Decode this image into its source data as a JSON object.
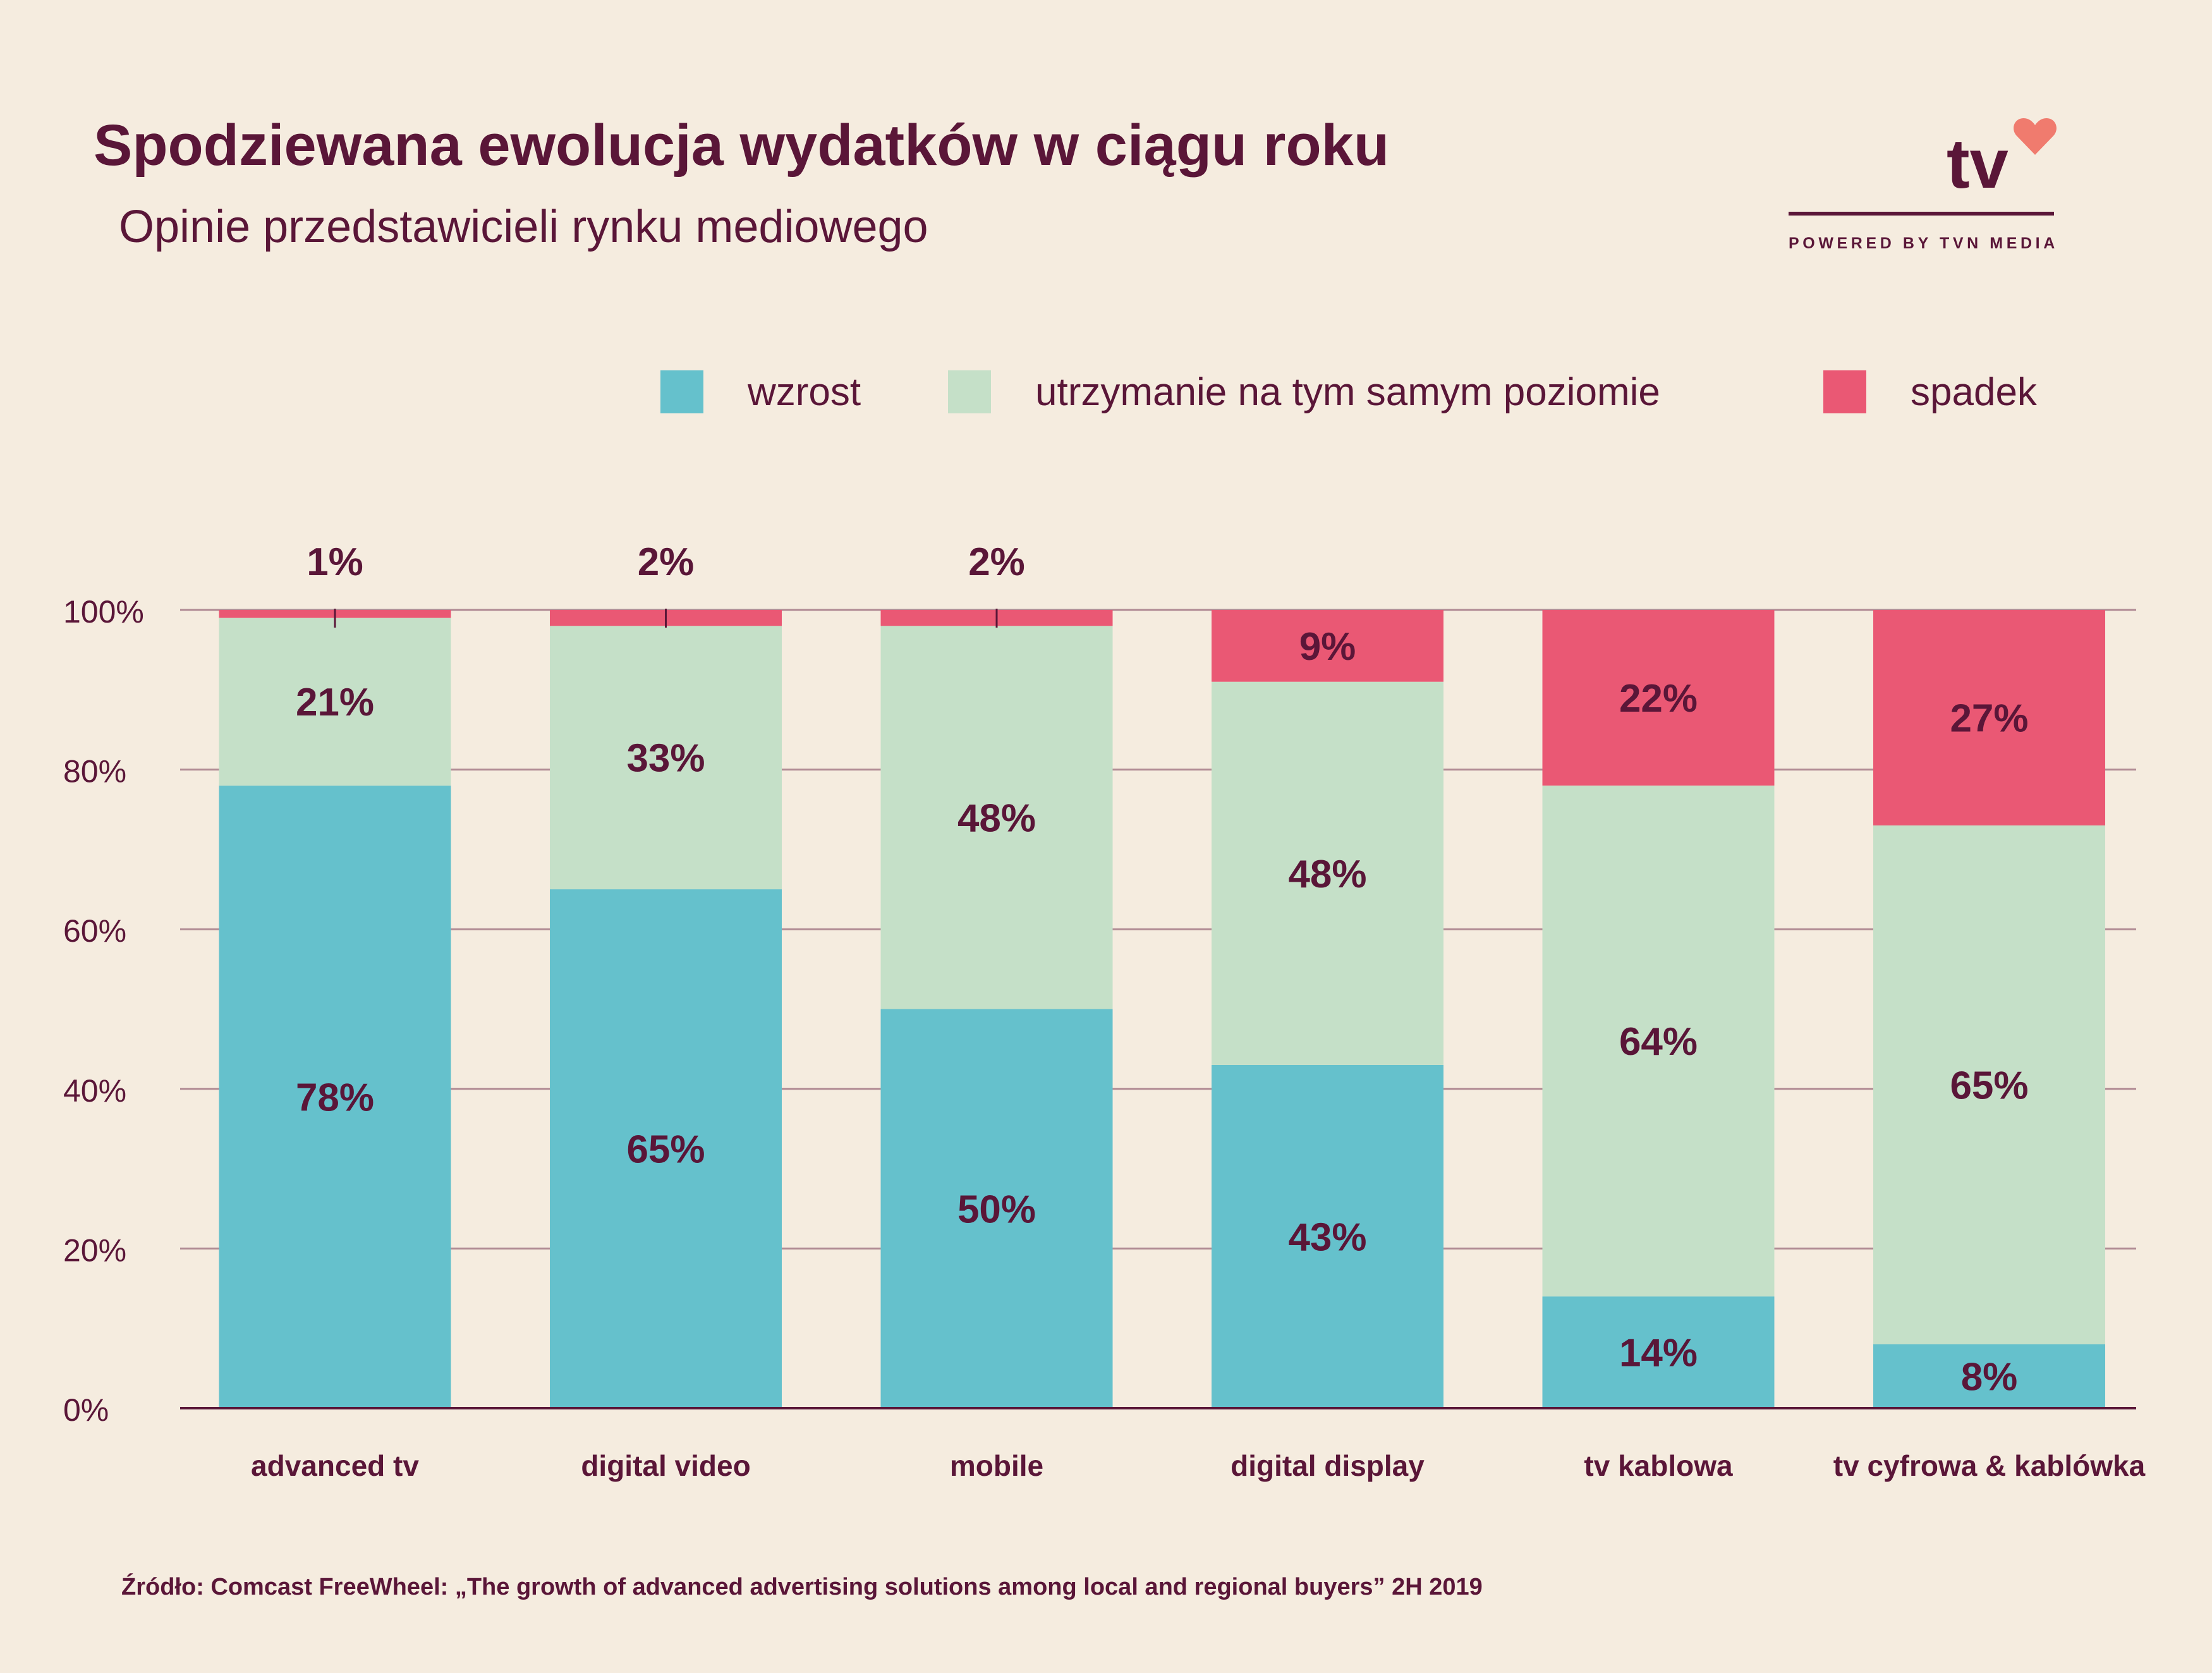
{
  "title": "Spodziewana ewolucja wydatków w ciągu roku",
  "subtitle": "Opinie przedstawicieli rynku mediowego",
  "logo": {
    "text": "tv",
    "tagline": "POWERED BY TVN MEDIA",
    "heart_color": "#f07b6e"
  },
  "legend": [
    {
      "label": "wzrost",
      "color": "#65c1cc"
    },
    {
      "label": "utrzymanie na tym samym poziomie",
      "color": "#c5e0c8"
    },
    {
      "label": "spadek",
      "color": "#ea5874"
    }
  ],
  "chart_data": {
    "type": "bar",
    "stacked": true,
    "categories": [
      "advanced tv",
      "digital video",
      "mobile",
      "digital display",
      "tv kablowa",
      "tv cyfrowa & kablówka"
    ],
    "series": [
      {
        "name": "wzrost",
        "values": [
          78,
          65,
          50,
          43,
          14,
          8
        ],
        "labels": [
          "78%",
          "65%",
          "50%",
          "43%",
          "14%",
          "8%"
        ],
        "color": "#65c1cc"
      },
      {
        "name": "utrzymanie na tym samym poziomie",
        "values": [
          21,
          33,
          48,
          48,
          64,
          65
        ],
        "labels": [
          "21%",
          "33%",
          "48%",
          "48%",
          "64%",
          "65%"
        ],
        "color": "#c5e0c8"
      },
      {
        "name": "spadek",
        "values": [
          1,
          2,
          2,
          9,
          22,
          27
        ],
        "labels": [
          "1%",
          "2%",
          "2%",
          "9%",
          "22%",
          "27%"
        ],
        "color": "#ea5874"
      }
    ],
    "yticks": [
      "0%",
      "20%",
      "40%",
      "60%",
      "80%",
      "100%"
    ],
    "ylim": [
      0,
      100
    ],
    "grid": true,
    "legend_position": "top-right"
  },
  "source": "Źródło: Comcast FreeWheel: „The growth of advanced advertising solutions among local and regional buyers” 2H 2019"
}
